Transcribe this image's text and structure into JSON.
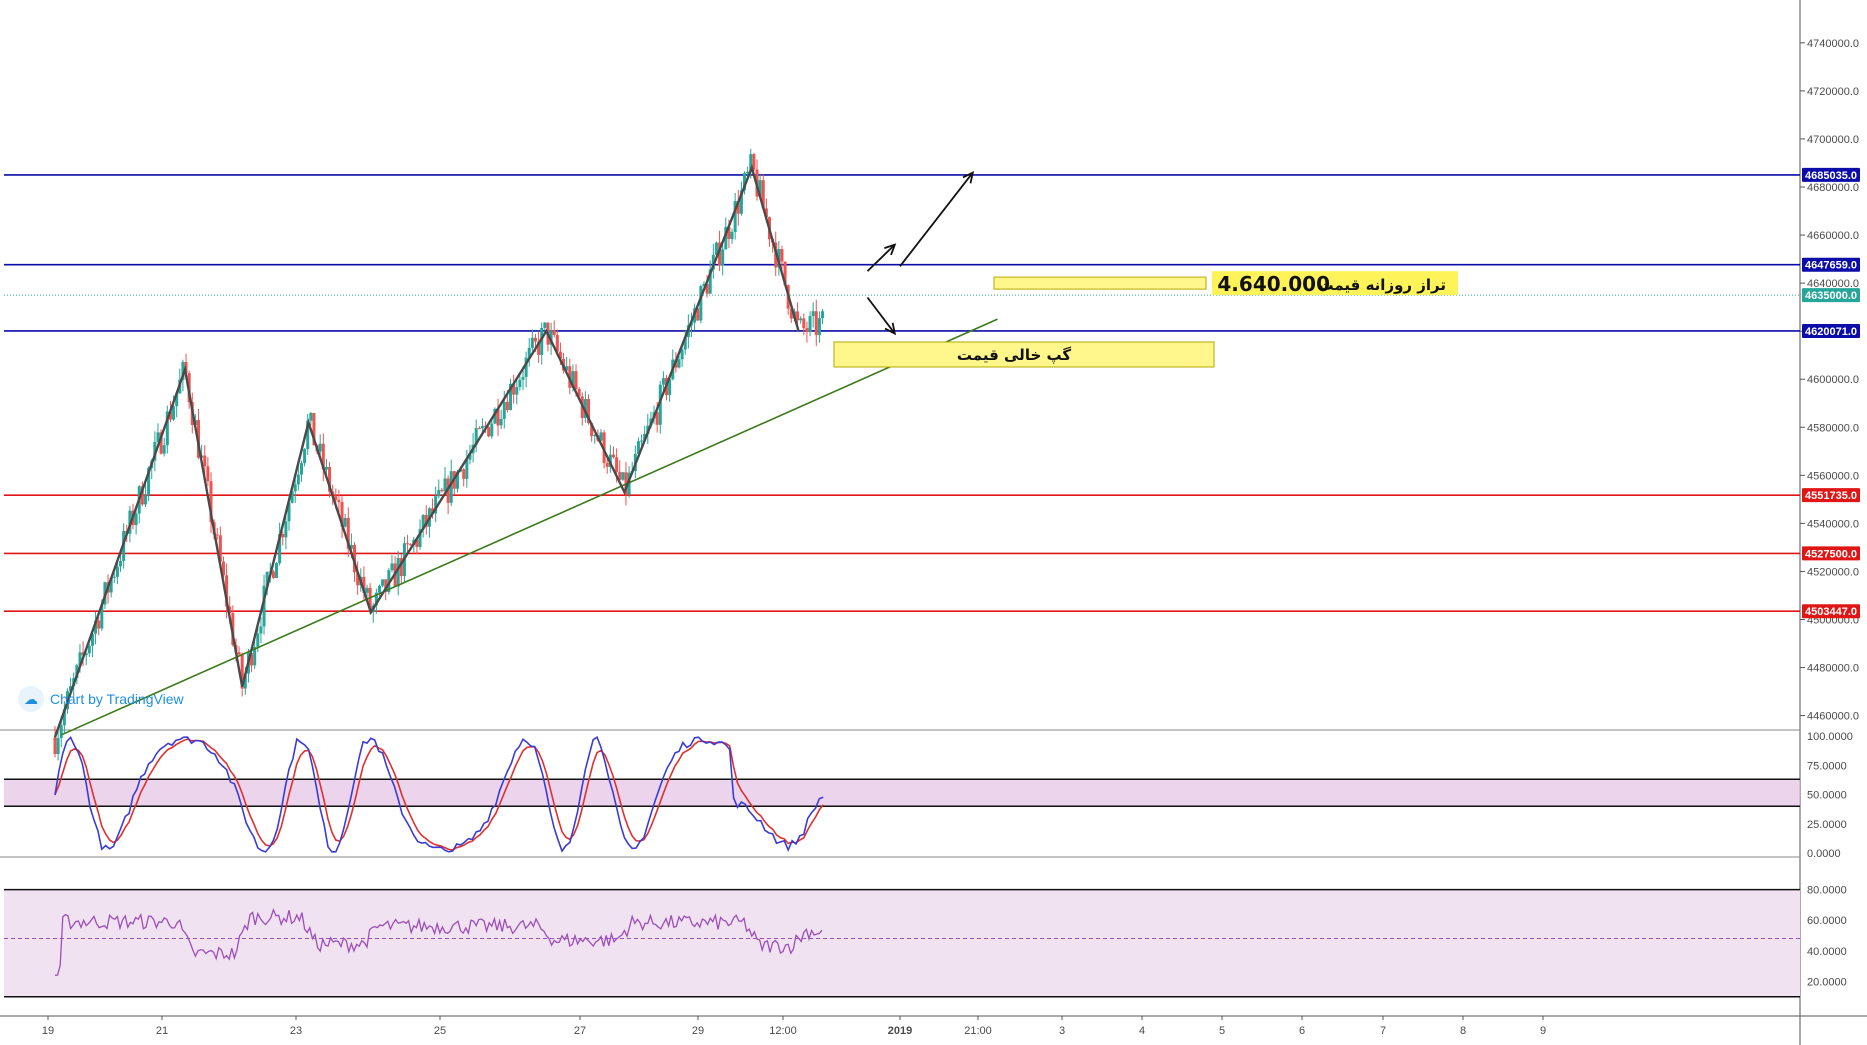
{
  "chart_data": {
    "type": "candlestick",
    "price_axis": {
      "ticks": [
        "4740000.0",
        "4720000.0",
        "4700000.0",
        "4680000.0",
        "4660000.0",
        "4640000.0",
        "4620000.0",
        "4600000.0",
        "4580000.0",
        "4560000.0",
        "4540000.0",
        "4520000.0",
        "4500000.0",
        "4480000.0",
        "4460000.0"
      ],
      "range": [
        4454000,
        4752000
      ]
    },
    "horizontal_levels": [
      {
        "value": 4685035.0,
        "label": "4685035.0",
        "color": "#0c0ca8"
      },
      {
        "value": 4647659.0,
        "label": "4647659.0",
        "color": "#0c0ca8"
      },
      {
        "value": 4620071.0,
        "label": "4620071.0",
        "color": "#0c0ca8"
      },
      {
        "value": 4551735.0,
        "label": "4551735.0",
        "color": "#e01515"
      },
      {
        "value": 4527500.0,
        "label": "4527500.0",
        "color": "#e01515"
      },
      {
        "value": 4503447.0,
        "label": "4503447.0",
        "color": "#e01515"
      }
    ],
    "last_price": {
      "value": 4635000.0,
      "label": "4635000.0",
      "color": "#26a69a"
    },
    "x_axis_ticks": [
      "19",
      "21",
      "23",
      "25",
      "27",
      "29",
      "12:00",
      "2019",
      "21:00",
      "3",
      "4",
      "5",
      "6",
      "7",
      "8",
      "9"
    ],
    "zigzag_points": [
      {
        "t": 0.0,
        "p": 4451000
      },
      {
        "t": 10.0,
        "p": 4604000
      },
      {
        "t": 14.4,
        "p": 4472000
      },
      {
        "t": 19.5,
        "p": 4582000
      },
      {
        "t": 24.3,
        "p": 4503000
      },
      {
        "t": 37.8,
        "p": 4620000
      },
      {
        "t": 43.8,
        "p": 4553000
      },
      {
        "t": 53.6,
        "p": 4688000
      },
      {
        "t": 57.2,
        "p": 4620000
      }
    ],
    "trendline": {
      "from": {
        "t": 0.5,
        "p": 4452000
      },
      "to": {
        "t": 72.5,
        "p": 4625000
      },
      "color": "#3c7a1d"
    },
    "projection_arrows": [
      {
        "from": {
          "t": 62.5,
          "p": 4645000
        },
        "to": {
          "t": 64.6,
          "p": 4656000
        }
      },
      {
        "from": {
          "t": 62.5,
          "p": 4634000
        },
        "to": {
          "t": 64.6,
          "p": 4619000
        }
      },
      {
        "from": {
          "t": 65.0,
          "p": 4647000
        },
        "to": {
          "t": 70.6,
          "p": 4686000
        }
      }
    ],
    "annotations": [
      {
        "text": "تراز روزانه قیمت",
        "number": "4.640.000"
      },
      {
        "text": "گپ خالی قیمت"
      }
    ],
    "stochastic": {
      "ticks": [
        "100.0000",
        "75.0000",
        "50.0000",
        "25.0000",
        "0.0000"
      ],
      "band": [
        40,
        63
      ],
      "k_color": "#3b3bd6",
      "d_color": "#e0302e"
    },
    "rsi": {
      "ticks": [
        "80.0000",
        "60.0000",
        "40.0000",
        "20.0000"
      ],
      "band": [
        10,
        80
      ],
      "mid": 48,
      "color": "#9b4fb8"
    }
  },
  "watermark": {
    "icon": "tradingview-cloud-icon",
    "text": "Chart by TradingView"
  }
}
